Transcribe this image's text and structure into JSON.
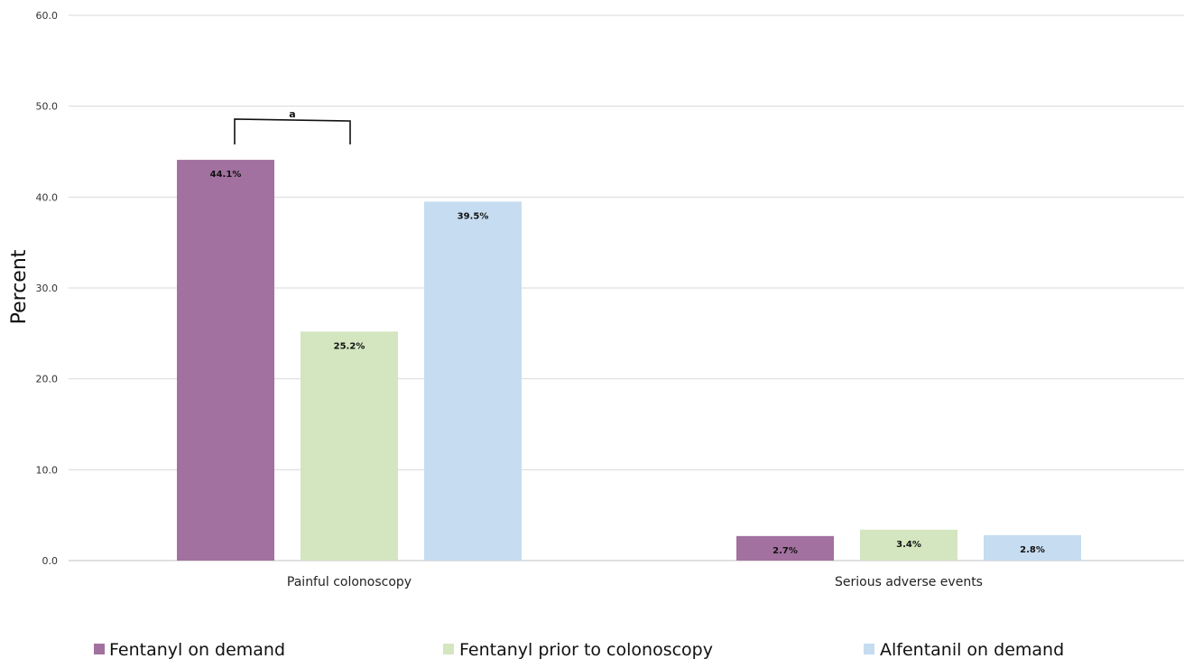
{
  "chart_data": {
    "type": "bar",
    "title": "",
    "xlabel": "",
    "ylabel": "Percent",
    "ylim": [
      0,
      60
    ],
    "yticks": [
      0,
      10,
      20,
      30,
      40,
      50,
      60
    ],
    "ytick_labels": [
      "0.0",
      "10.0",
      "20.0",
      "30.0",
      "40.0",
      "50.0",
      "60.0"
    ],
    "grid": true,
    "legend_position": "bottom",
    "categories": [
      "Painful colonoscopy",
      "Serious adverse events"
    ],
    "series": [
      {
        "name": "Fentanyl on demand",
        "color": "#a2719f",
        "values": [
          44.1,
          2.7
        ],
        "labels": [
          "44.1%",
          "2.7%"
        ]
      },
      {
        "name": "Fentanyl prior to colonoscopy",
        "color": "#d3e6c0",
        "values": [
          25.2,
          3.4
        ],
        "labels": [
          "25.2%",
          "3.4%"
        ]
      },
      {
        "name": "Alfentanil on demand",
        "color": "#c6dcf0",
        "values": [
          39.5,
          2.8
        ],
        "labels": [
          "39.5%",
          "2.8%"
        ]
      }
    ],
    "annotations": [
      {
        "text": "a",
        "type": "significance-bracket",
        "category": "Painful colonoscopy",
        "between_series": [
          "Fentanyl on demand",
          "Fentanyl prior to colonoscopy"
        ]
      }
    ]
  }
}
